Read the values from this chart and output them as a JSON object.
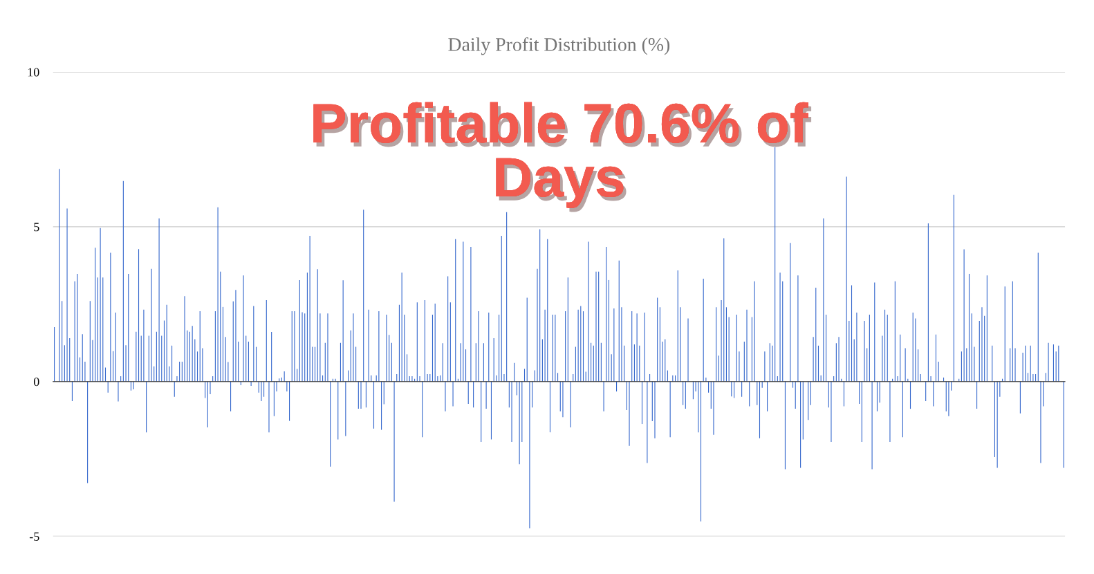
{
  "chart_data": {
    "type": "bar",
    "title": "Daily Profit Distribution (%)",
    "annotations": [
      "Profitable 70.6% of\nDays"
    ],
    "categories": [
      null,
      null,
      null,
      null,
      null,
      null,
      null,
      null,
      null,
      null,
      null,
      null,
      null,
      null,
      null,
      null,
      null,
      null,
      null,
      null,
      null,
      null,
      null,
      null,
      null,
      null,
      null,
      null,
      null,
      null,
      null,
      null,
      null,
      null,
      null,
      null,
      null,
      null,
      null,
      null,
      null,
      null,
      null,
      null,
      null,
      null,
      null,
      null,
      null,
      null,
      null,
      null,
      null,
      null,
      null,
      null,
      null,
      null,
      null,
      null,
      null,
      null,
      null,
      null,
      null,
      null,
      null,
      null,
      null,
      null,
      null,
      null,
      null,
      null,
      null,
      null,
      null,
      null,
      null,
      null,
      null,
      null,
      null,
      null,
      null,
      null,
      null,
      null,
      null,
      null,
      null,
      null,
      null,
      null,
      null,
      null,
      null,
      null,
      null,
      null,
      null,
      null,
      null,
      null,
      null,
      null,
      null,
      null,
      null,
      null,
      null,
      null,
      null,
      null,
      null,
      null,
      null,
      null,
      null,
      null,
      null,
      null,
      null,
      null,
      null,
      null,
      null,
      null,
      null,
      null,
      null,
      null,
      null,
      null,
      null,
      null,
      null,
      null,
      null,
      null,
      null,
      null,
      null,
      null,
      null,
      null,
      null,
      null,
      null,
      null,
      null,
      null,
      null,
      null,
      null,
      null,
      null,
      null,
      null,
      null,
      null,
      null,
      null,
      null,
      null,
      null,
      null,
      null,
      null,
      null,
      null,
      null,
      null,
      null,
      null,
      null,
      null,
      null,
      null,
      null,
      null,
      null,
      null,
      null,
      null,
      null,
      null,
      null,
      null,
      null,
      null,
      null,
      null,
      null,
      null,
      null,
      null,
      null,
      null,
      null,
      null,
      null,
      null,
      null,
      null,
      null,
      null,
      null,
      null,
      null,
      null,
      null,
      null,
      null,
      null,
      null,
      null,
      null,
      null,
      null,
      null,
      null,
      null,
      null,
      null,
      null,
      null,
      null,
      null,
      null,
      null,
      null,
      null,
      null,
      null,
      null,
      null,
      null,
      null,
      null,
      null,
      null,
      null,
      null,
      null,
      null,
      null,
      null,
      null,
      null,
      null,
      null,
      null,
      null,
      null,
      null,
      null,
      null,
      null,
      null,
      null,
      null,
      null,
      null,
      null,
      null,
      null,
      null,
      null,
      null,
      null,
      null,
      null,
      null,
      null,
      null,
      null,
      null,
      null,
      null,
      null,
      null,
      null,
      null,
      null,
      null,
      null,
      null,
      null,
      null,
      null,
      null,
      null,
      null,
      null,
      null,
      null,
      null,
      null,
      null,
      null,
      null,
      null,
      null,
      null,
      null,
      null,
      null,
      null,
      null,
      null,
      null,
      null,
      null,
      null,
      null,
      null,
      null,
      null,
      null,
      null,
      null,
      null,
      null,
      null,
      null,
      null,
      null,
      null,
      null,
      null,
      null,
      null,
      null,
      null,
      null,
      null,
      null,
      null,
      null,
      null,
      null,
      null,
      null,
      null,
      null,
      null,
      null,
      null,
      null,
      null,
      null,
      null,
      null,
      null,
      null,
      null,
      null,
      null,
      null,
      null,
      null,
      null,
      null,
      null,
      null,
      null,
      null,
      null,
      null,
      null,
      null,
      null,
      null,
      null,
      null,
      null,
      null,
      null,
      null,
      null,
      null,
      null,
      null,
      null,
      null,
      null,
      null,
      null,
      null,
      null,
      null,
      null,
      null,
      null,
      null
    ],
    "values": [
      1.76,
      0,
      6.87,
      2.6,
      1.17,
      5.59,
      1.4,
      -0.63,
      3.24,
      3.48,
      0.78,
      1.53,
      0.64,
      -3.28,
      2.6,
      1.34,
      4.32,
      3.36,
      4.96,
      3.36,
      0.45,
      -0.36,
      4.16,
      0.98,
      2.23,
      -0.64,
      0.17,
      6.48,
      1.17,
      3.48,
      -0.29,
      -0.25,
      1.61,
      4.28,
      1.48,
      2.32,
      -1.64,
      1.48,
      3.64,
      0.49,
      1.61,
      5.27,
      1.48,
      1.97,
      2.48,
      0.49,
      1.16,
      -0.49,
      0.17,
      0.64,
      0.64,
      2.76,
      1.65,
      1.61,
      1.8,
      1.37,
      0.97,
      2.27,
      1.08,
      -0.53,
      -1.48,
      -0.41,
      0.17,
      2.27,
      5.63,
      3.55,
      2.41,
      1.44,
      0.63,
      -0.96,
      2.59,
      2.96,
      1.29,
      -0.12,
      3.43,
      1.48,
      1.29,
      -0.14,
      2.44,
      1.12,
      -0.36,
      -0.63,
      -0.49,
      2.63,
      -1.64,
      1.6,
      -1.12,
      -0.32,
      0.1,
      0.13,
      0.33,
      -0.32,
      -1.27,
      2.27,
      2.27,
      0.41,
      3.28,
      2.24,
      2.2,
      3.52,
      4.71,
      1.12,
      1.12,
      3.63,
      2.2,
      0.2,
      1.25,
      2.2,
      -2.75,
      0.09,
      0.09,
      -1.87,
      1.25,
      3.27,
      -1.76,
      0.36,
      1.65,
      2.2,
      1.12,
      -0.88,
      -0.88,
      5.55,
      -0.84,
      2.32,
      0.2,
      -1.52,
      0.2,
      2.27,
      -1.56,
      -0.73,
      2.16,
      1.51,
      1.25,
      -3.88,
      0.24,
      2.48,
      3.52,
      2.16,
      0.88,
      0.17,
      0.17,
      0.09,
      2.56,
      0.17,
      -1.8,
      2.63,
      0.24,
      0.24,
      2.16,
      2.52,
      0.17,
      0.2,
      1.24,
      -0.96,
      3.4,
      2.56,
      -0.8,
      4.6,
      0.09,
      1.24,
      4.52,
      1.04,
      -0.72,
      4.35,
      -0.84,
      1.24,
      2.27,
      -1.95,
      1.24,
      -0.88,
      2.23,
      -1.87,
      1.4,
      0.2,
      2.16,
      4.71,
      0.24,
      5.47,
      -0.84,
      -1.95,
      0.6,
      -0.44,
      -2.67,
      -1.95,
      0.41,
      2.71,
      -4.74,
      -0.84,
      0.36,
      3.64,
      4.92,
      1.37,
      2.32,
      4.6,
      -1.64,
      2.16,
      2.16,
      0.28,
      -0.96,
      -1.15,
      2.27,
      3.36,
      -1.48,
      0.24,
      1.12,
      2.32,
      2.44,
      2.27,
      0.32,
      4.52,
      1.25,
      1.16,
      3.55,
      3.55,
      1.25,
      -0.96,
      4.35,
      3.28,
      0.88,
      2.36,
      -0.32,
      3.91,
      2.4,
      1.16,
      -0.92,
      -2.08,
      2.27,
      1.2,
      2.2,
      1.16,
      -1.37,
      2.23,
      -2.63,
      0.24,
      -1.28,
      -1.83,
      2.71,
      2.4,
      1.29,
      1.37,
      0.36,
      -1.8,
      0.2,
      0.2,
      3.59,
      2.4,
      -0.76,
      -0.88,
      2.04,
      0,
      -0.57,
      -0.32,
      -1.64,
      -4.52,
      3.32,
      0.13,
      -0.36,
      -0.88,
      -1.72,
      2.4,
      0.84,
      2.63,
      4.63,
      2.4,
      2.08,
      -0.48,
      -0.53,
      2.16,
      0.97,
      -0.49,
      1.29,
      2.32,
      -0.8,
      2.08,
      3.24,
      -0.76,
      -1.83,
      -0.2,
      0.97,
      -0.96,
      1.24,
      1.16,
      7.59,
      0.17,
      3.52,
      3.24,
      -2.83,
      0,
      4.48,
      -0.2,
      -0.88,
      3.43,
      -2.79,
      -1.87,
      0,
      -1.24,
      -0.76,
      1.44,
      3.03,
      1.16,
      0.2,
      5.27,
      2.16,
      -0.84,
      -1.95,
      0.17,
      1.24,
      1.44,
      0.09,
      -0.8,
      6.62,
      1.96,
      3.11,
      1.37,
      2.23,
      -0.72,
      -1.95,
      1.96,
      1.08,
      2.16,
      -2.83,
      3.2,
      -0.96,
      -0.68,
      1.48,
      2.32,
      2.16,
      -1.95,
      0.09,
      3.24,
      0.17,
      1.52,
      -1.8,
      1.08,
      0.09,
      -0.88,
      2.23,
      2.04,
      1.04,
      0.24,
      0,
      -0.63,
      5.11,
      0.17,
      -0.8,
      1.52,
      0.64,
      0,
      0.13,
      -0.96,
      -1.12,
      -0.29,
      6.03,
      0,
      0.09,
      0.97,
      4.27,
      1.08,
      3.48,
      2.2,
      1.12,
      -0.88,
      1.96,
      2.4,
      2.12,
      3.43,
      0,
      1.16,
      -2.44,
      -2.79,
      -0.49,
      0.09,
      3.07,
      0,
      1.08,
      3.24,
      1.08,
      0,
      -1.03,
      0.93,
      1.16,
      0.28,
      1.16,
      0.24,
      0.24,
      4.16,
      -2.63,
      -0.8,
      0.28,
      1.25,
      0,
      1.2,
      0.97,
      1.16,
      0,
      -2.79
    ],
    "color": "#3366cc",
    "ylim": [
      -5,
      10
    ],
    "yticks": [
      -5,
      0,
      5,
      10
    ],
    "grid": "y",
    "tick_labels": "y"
  }
}
